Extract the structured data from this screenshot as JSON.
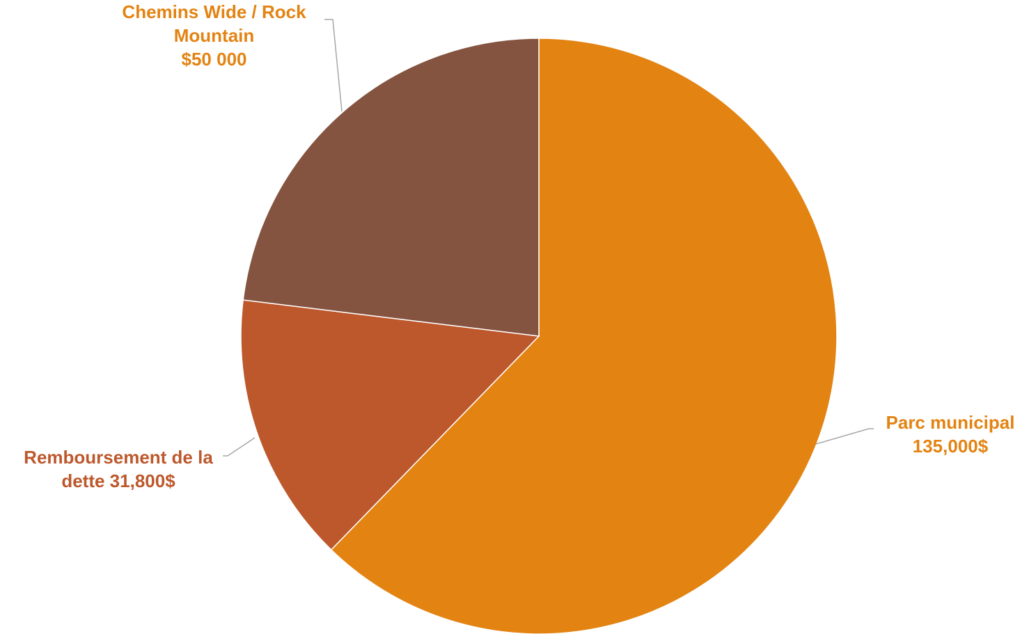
{
  "chart_data": {
    "type": "pie",
    "title": "",
    "series": [
      {
        "values": [
          135000,
          31800,
          50000
        ]
      }
    ],
    "categories": [
      "Parc municipal",
      "Remboursement de la dette",
      "Chemins Wide / Rock Mountain"
    ],
    "slices": [
      {
        "category": "Parc municipal",
        "value": 135000,
        "color": "#E38312",
        "label_color": "#E38312",
        "label_lines": [
          "Parc municipal",
          "135,000$"
        ]
      },
      {
        "category": "Remboursement de la dette",
        "value": 31800,
        "color": "#BD582C",
        "label_color": "#BD582C",
        "label_lines": [
          "Remboursement de la",
          "dette 31,800$"
        ]
      },
      {
        "category": "Chemins Wide / Rock Mountain",
        "value": 50000,
        "color": "#845441",
        "label_color": "#E38312",
        "label_lines": [
          "Chemins Wide / Rock",
          "Mountain",
          "$50 000"
        ]
      }
    ],
    "start_angle_deg": 0,
    "direction": "clockwise",
    "legend": "none",
    "data_labels": "outside-with-leader-lines"
  }
}
